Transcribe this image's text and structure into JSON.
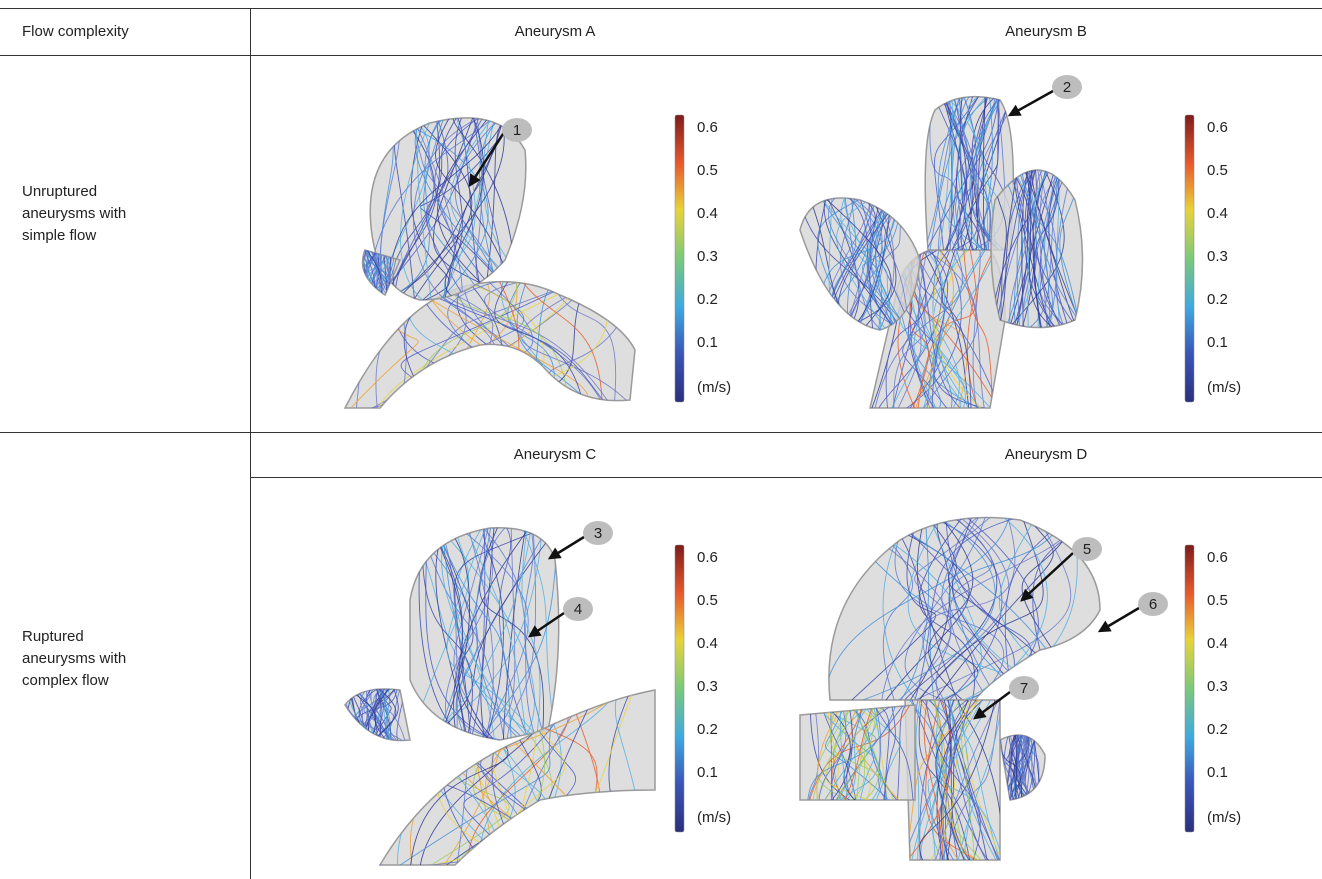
{
  "header": {
    "first": "Flow complexity"
  },
  "sections": [
    {
      "label": "Unruptured aneurysms with simple flow",
      "panels": [
        {
          "title": "Aneurysm A",
          "colorbar": {
            "ticks": [
              0.6,
              0.5,
              0.4,
              0.3,
              0.2,
              0.1
            ],
            "unit": "(m/s)"
          },
          "markers": [
            "1"
          ]
        },
        {
          "title": "Aneurysm B",
          "colorbar": {
            "ticks": [
              0.6,
              0.5,
              0.4,
              0.3,
              0.2,
              0.1
            ],
            "unit": "(m/s)"
          },
          "markers": [
            "2"
          ]
        }
      ]
    },
    {
      "label": "Ruptured aneurysms with complex flow",
      "panels": [
        {
          "title": "Aneurysm C",
          "colorbar": {
            "ticks": [
              0.6,
              0.5,
              0.4,
              0.3,
              0.2,
              0.1
            ],
            "unit": "(m/s)"
          },
          "markers": [
            "3",
            "4"
          ]
        },
        {
          "title": "Aneurysm D",
          "colorbar": {
            "ticks": [
              0.6,
              0.5,
              0.4,
              0.3,
              0.2,
              0.1
            ],
            "unit": "(m/s)"
          },
          "markers": [
            "5",
            "6",
            "7"
          ]
        }
      ]
    }
  ]
}
